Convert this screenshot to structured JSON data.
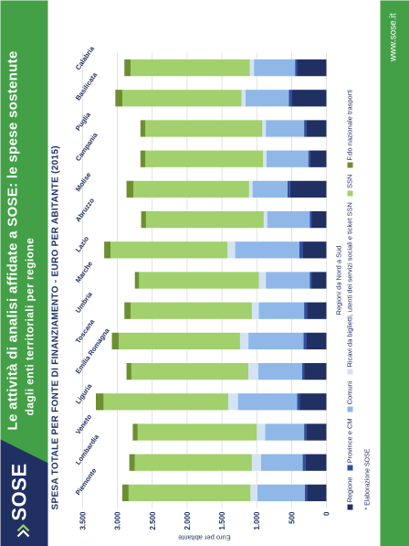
{
  "header": {
    "logo": "SOSE",
    "title": "Le attività di analisi affidate a SOSE: le spese sostenute",
    "subtitle": "dagli enti territoriali per regione"
  },
  "footer": {
    "url": "www.sose.it",
    "footnote": "* Elaborazione SOSE"
  },
  "colors": {
    "header_green": "#43a047",
    "navy": "#213062",
    "grid": "#d0d0d0"
  },
  "chart_data": {
    "type": "bar",
    "orientation": "horizontal",
    "stacked": true,
    "title": "SPESA TOTALE PER FONTE DI FINANZIAMENTO - EURO PER ABITANTE (2015)",
    "ylabel": "Euro per abitante",
    "xlabel": "Regioni da Nord a Sud",
    "ylim": [
      0,
      3500
    ],
    "yticks": [
      0,
      500,
      1000,
      1500,
      2000,
      2500,
      3000,
      3500
    ],
    "ytick_labels": [
      "0",
      "500",
      "1.000",
      "1.500",
      "2.000",
      "2.500",
      "3.000",
      "3.500"
    ],
    "grid": true,
    "legend": "bottom",
    "categories": [
      "Piemonte",
      "Lombardia",
      "Veneto",
      "Liguria",
      "Emilia Romagna",
      "Toscana",
      "Umbria",
      "Marche",
      "Lazio",
      "Abruzzo",
      "Molise",
      "Campania",
      "Puglia",
      "Basilicata",
      "Calabria"
    ],
    "series": [
      {
        "name": "Regione",
        "color": "#213062",
        "values": [
          280,
          300,
          290,
          380,
          320,
          290,
          280,
          210,
          340,
          210,
          520,
          230,
          290,
          500,
          420
        ]
      },
      {
        "name": "Province e CM",
        "color": "#2e4fa3",
        "values": [
          30,
          40,
          30,
          40,
          30,
          40,
          40,
          30,
          50,
          30,
          40,
          30,
          30,
          40,
          30
        ]
      },
      {
        "name": "Comuni",
        "color": "#8fb8e8",
        "values": [
          680,
          600,
          560,
          850,
          630,
          790,
          650,
          630,
          920,
          610,
          500,
          600,
          550,
          620,
          590
        ]
      },
      {
        "name": "Ricavi da biglietti, utenti dei servizi sociali e ticket SSN",
        "color": "#d4e3f3",
        "values": [
          100,
          130,
          120,
          140,
          140,
          120,
          100,
          100,
          110,
          50,
          50,
          50,
          50,
          60,
          60
        ]
      },
      {
        "name": "SSN",
        "color": "#a2d06c",
        "values": [
          1750,
          1680,
          1710,
          1790,
          1680,
          1740,
          1740,
          1720,
          1680,
          1690,
          1660,
          1690,
          1680,
          1710,
          1710
        ]
      },
      {
        "name": "F.do nazionale trasporti",
        "color": "#6b8f32",
        "values": [
          90,
          80,
          70,
          110,
          70,
          100,
          90,
          60,
          90,
          70,
          100,
          70,
          70,
          100,
          90
        ]
      }
    ]
  }
}
